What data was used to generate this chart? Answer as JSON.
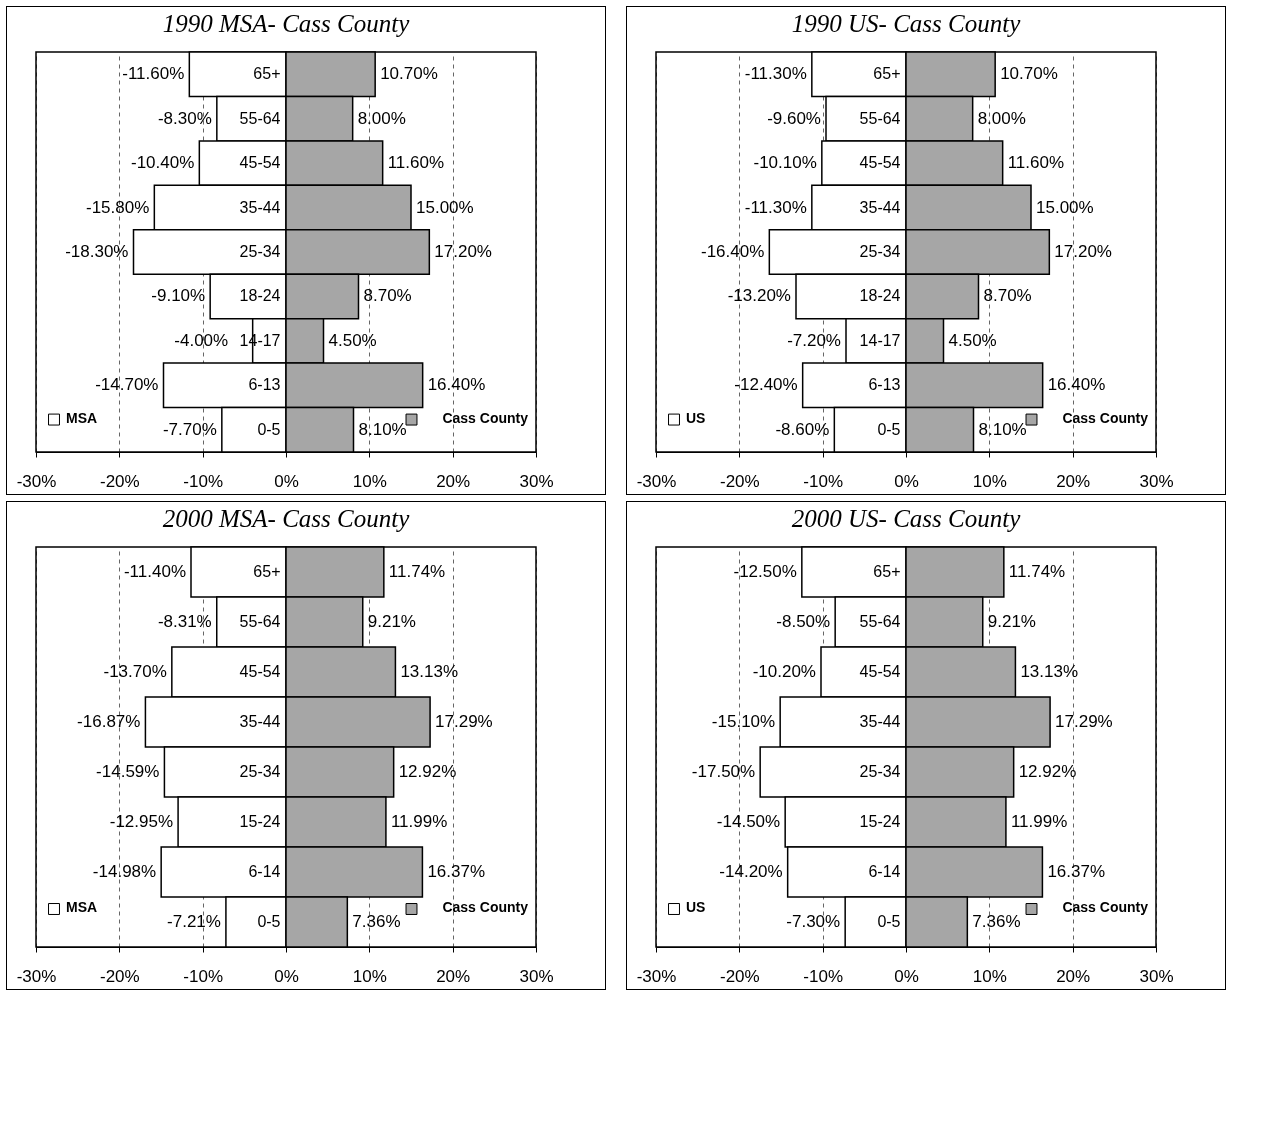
{
  "chart_data": [
    {
      "type": "bar",
      "orientation": "horizontal",
      "stacked": true,
      "title": "1990 MSA- Cass County",
      "categories": [
        "65+",
        "55-64",
        "45-54",
        "35-44",
        "25-34",
        "18-24",
        "14-17",
        "6-13",
        "0-5"
      ],
      "series": [
        {
          "name": "MSA",
          "color": "#ffffff",
          "values": [
            -11.6,
            -8.3,
            -10.4,
            -15.8,
            -18.3,
            -9.1,
            -4.0,
            -14.7,
            -7.7
          ],
          "value_labels": [
            "-11.60%",
            "-8.30%",
            "-10.40%",
            "-15.80%",
            "-18.30%",
            "-9.10%",
            "-4.00%",
            "-14.70%",
            "-7.70%"
          ]
        },
        {
          "name": "Cass County",
          "color": "#a6a6a6",
          "values": [
            10.7,
            8.0,
            11.6,
            15.0,
            17.2,
            8.7,
            4.5,
            16.4,
            8.1
          ],
          "value_labels": [
            "10.70%",
            "8.00%",
            "11.60%",
            "15.00%",
            "17.20%",
            "8.70%",
            "4.50%",
            "16.40%",
            "8.10%"
          ]
        }
      ],
      "xlim": [
        -30,
        30
      ],
      "xticks": [
        {
          "value": -30,
          "label": "-30%"
        },
        {
          "value": -20,
          "label": "-20%"
        },
        {
          "value": -10,
          "label": "-10%"
        },
        {
          "value": 0,
          "label": "0%"
        },
        {
          "value": 10,
          "label": "10%"
        },
        {
          "value": 20,
          "label": "20%"
        },
        {
          "value": 30,
          "label": "30%"
        }
      ],
      "grid": "x",
      "legend": "bottom"
    },
    {
      "type": "bar",
      "orientation": "horizontal",
      "stacked": true,
      "title": "1990 US- Cass County",
      "categories": [
        "65+",
        "55-64",
        "45-54",
        "35-44",
        "25-34",
        "18-24",
        "14-17",
        "6-13",
        "0-5"
      ],
      "series": [
        {
          "name": "US",
          "color": "#ffffff",
          "values": [
            -11.3,
            -9.6,
            -10.1,
            -11.3,
            -16.4,
            -13.2,
            -7.2,
            -12.4,
            -8.6
          ],
          "value_labels": [
            "-11.30%",
            "-9.60%",
            "-10.10%",
            "-11.30%",
            "-16.40%",
            "-13.20%",
            "-7.20%",
            "-12.40%",
            "-8.60%"
          ]
        },
        {
          "name": "Cass County",
          "color": "#a6a6a6",
          "values": [
            10.7,
            8.0,
            11.6,
            15.0,
            17.2,
            8.7,
            4.5,
            16.4,
            8.1
          ],
          "value_labels": [
            "10.70%",
            "8.00%",
            "11.60%",
            "15.00%",
            "17.20%",
            "8.70%",
            "4.50%",
            "16.40%",
            "8.10%"
          ]
        }
      ],
      "xlim": [
        -30,
        30
      ],
      "xticks": [
        {
          "value": -30,
          "label": "-30%"
        },
        {
          "value": -20,
          "label": "-20%"
        },
        {
          "value": -10,
          "label": "-10%"
        },
        {
          "value": 0,
          "label": "0%"
        },
        {
          "value": 10,
          "label": "10%"
        },
        {
          "value": 20,
          "label": "20%"
        },
        {
          "value": 30,
          "label": "30%"
        }
      ],
      "grid": "x",
      "legend": "bottom"
    },
    {
      "type": "bar",
      "orientation": "horizontal",
      "stacked": true,
      "title": "2000 MSA- Cass County",
      "categories": [
        "65+",
        "55-64",
        "45-54",
        "35-44",
        "25-34",
        "15-24",
        "6-14",
        "0-5"
      ],
      "series": [
        {
          "name": "MSA",
          "color": "#ffffff",
          "values": [
            -11.4,
            -8.31,
            -13.7,
            -16.87,
            -14.59,
            -12.95,
            -14.98,
            -7.21
          ],
          "value_labels": [
            "-11.40%",
            "-8.31%",
            "-13.70%",
            "-16.87%",
            "-14.59%",
            "-12.95%",
            "-14.98%",
            "-7.21%"
          ]
        },
        {
          "name": "Cass County",
          "color": "#a6a6a6",
          "values": [
            11.74,
            9.21,
            13.13,
            17.29,
            12.92,
            11.99,
            16.37,
            7.36
          ],
          "value_labels": [
            "11.74%",
            "9.21%",
            "13.13%",
            "17.29%",
            "12.92%",
            "11.99%",
            "16.37%",
            "7.36%"
          ]
        }
      ],
      "xlim": [
        -30,
        30
      ],
      "xticks": [
        {
          "value": -30,
          "label": "-30%"
        },
        {
          "value": -20,
          "label": "-20%"
        },
        {
          "value": -10,
          "label": "-10%"
        },
        {
          "value": 0,
          "label": "0%"
        },
        {
          "value": 10,
          "label": "10%"
        },
        {
          "value": 20,
          "label": "20%"
        },
        {
          "value": 30,
          "label": "30%"
        }
      ],
      "grid": "x",
      "legend": "bottom"
    },
    {
      "type": "bar",
      "orientation": "horizontal",
      "stacked": true,
      "title": "2000 US- Cass County",
      "categories": [
        "65+",
        "55-64",
        "45-54",
        "35-44",
        "25-34",
        "15-24",
        "6-14",
        "0-5"
      ],
      "series": [
        {
          "name": "US",
          "color": "#ffffff",
          "values": [
            -12.5,
            -8.5,
            -10.2,
            -15.1,
            -17.5,
            -14.5,
            -14.2,
            -7.3
          ],
          "value_labels": [
            "-12.50%",
            "-8.50%",
            "-10.20%",
            "-15.10%",
            "-17.50%",
            "-14.50%",
            "-14.20%",
            "-7.30%"
          ]
        },
        {
          "name": "Cass County",
          "color": "#a6a6a6",
          "values": [
            11.74,
            9.21,
            13.13,
            17.29,
            12.92,
            11.99,
            16.37,
            7.36
          ],
          "value_labels": [
            "11.74%",
            "9.21%",
            "13.13%",
            "17.29%",
            "12.92%",
            "11.99%",
            "16.37%",
            "7.36%"
          ]
        }
      ],
      "xlim": [
        -30,
        30
      ],
      "xticks": [
        {
          "value": -30,
          "label": "-30%"
        },
        {
          "value": -20,
          "label": "-20%"
        },
        {
          "value": -10,
          "label": "-10%"
        },
        {
          "value": 0,
          "label": "0%"
        },
        {
          "value": 10,
          "label": "10%"
        },
        {
          "value": 20,
          "label": "20%"
        },
        {
          "value": 30,
          "label": "30%"
        }
      ],
      "grid": "x",
      "legend": "bottom"
    }
  ]
}
